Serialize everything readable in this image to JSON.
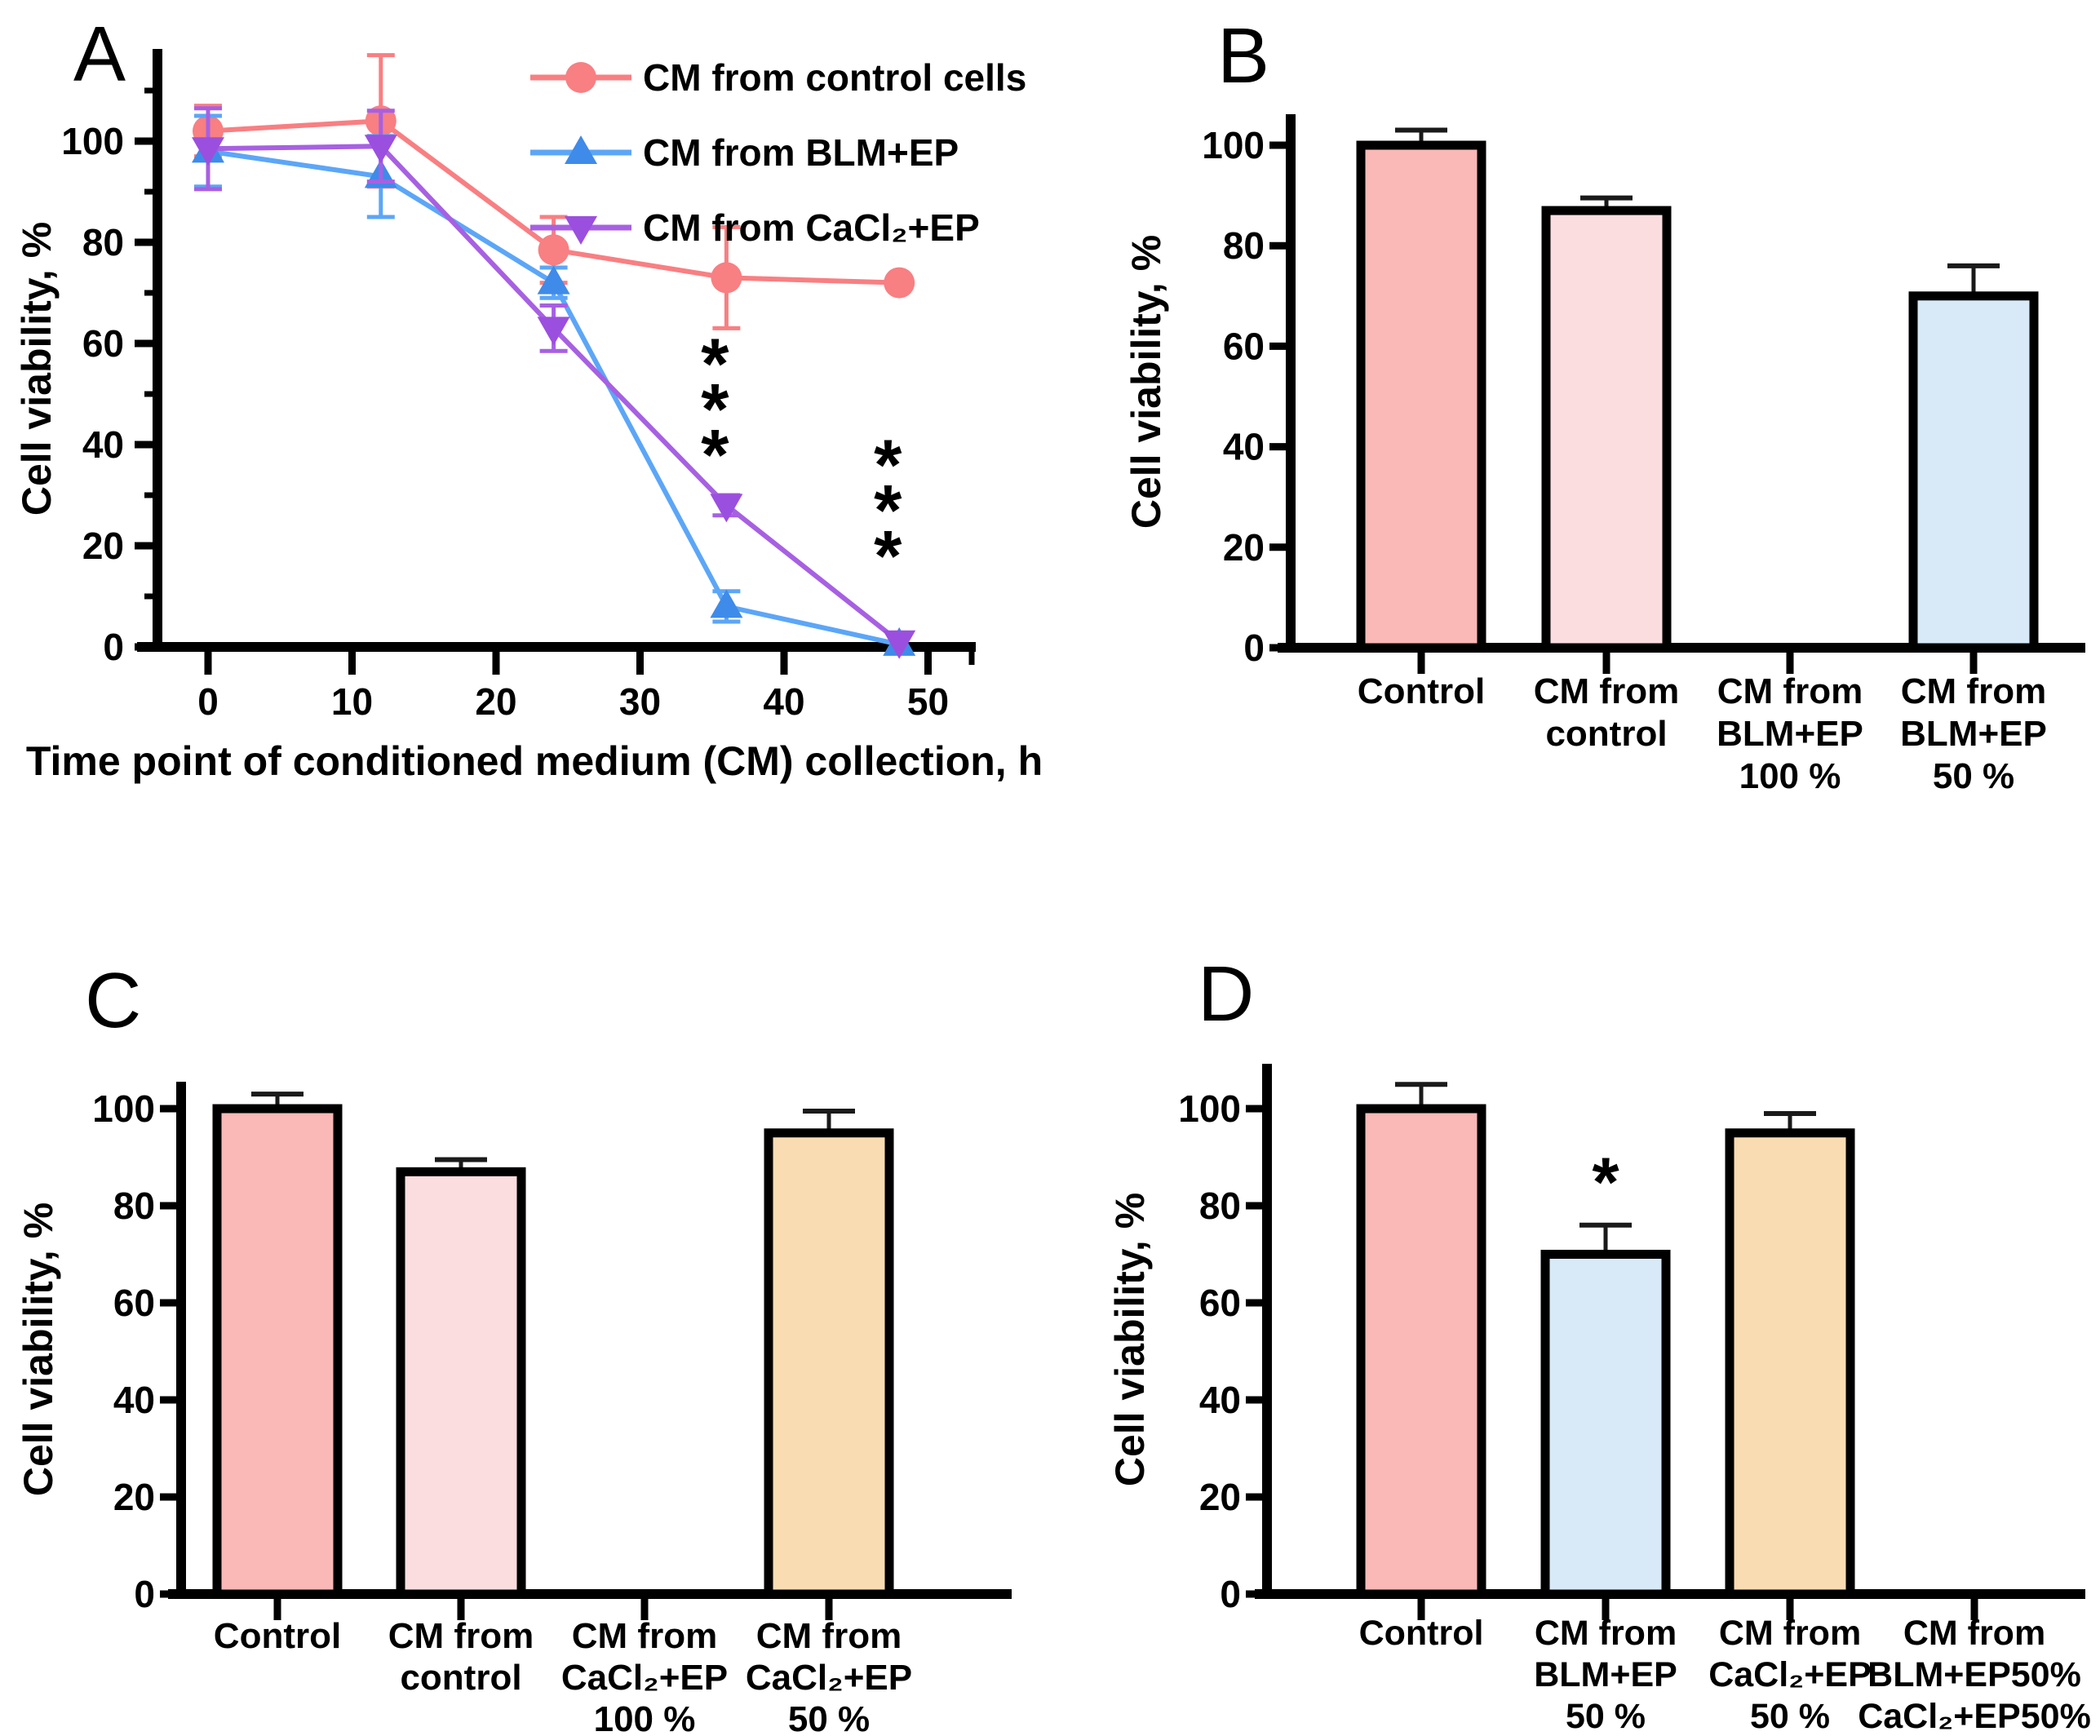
{
  "figure": {
    "background": "#ffffff",
    "panels": [
      {
        "letter": "A"
      },
      {
        "letter": "B"
      },
      {
        "letter": "C"
      },
      {
        "letter": "D"
      }
    ]
  },
  "chart_data": [
    {
      "panel": "A",
      "type": "line",
      "title": "",
      "xlabel": "Time point  of conditioned medium (CM) collection, h",
      "ylabel": "Cell viability, %",
      "x": [
        0,
        12,
        24,
        36,
        48
      ],
      "xticks": [
        0,
        10,
        20,
        30,
        40,
        50
      ],
      "yticks": [
        0,
        20,
        40,
        60,
        80,
        100
      ],
      "xlim": [
        -5,
        54
      ],
      "ylim": [
        0,
        118
      ],
      "grid": false,
      "legend_position": "top-right",
      "series": [
        {
          "name": "CM from control cells",
          "marker": "circle",
          "color": "#F87F82",
          "marker_color": "#F87F82",
          "values": [
            102,
            104,
            78.5,
            73,
            72
          ],
          "errors": [
            5,
            13,
            6.5,
            10,
            0
          ]
        },
        {
          "name": "CM from BLM+EP",
          "marker": "triangle-up",
          "color": "#5CA6F7",
          "marker_color": "#3E8BE9",
          "values": [
            98,
            93,
            72,
            8,
            0.5
          ],
          "errors": [
            7,
            8,
            3,
            3,
            0
          ]
        },
        {
          "name": "CM from CaCl₂+EP",
          "marker": "triangle-down",
          "color": "#A760E2",
          "marker_color": "#9B4FDE",
          "values": [
            98.5,
            99,
            63,
            28,
            1
          ],
          "errors": [
            8,
            7,
            4.5,
            2,
            0
          ]
        }
      ],
      "annotations": [
        {
          "text": "*",
          "x": 36,
          "y_values": [
            56,
            47,
            38
          ]
        },
        {
          "text": "*",
          "x": 48,
          "y_values": [
            36,
            27,
            18
          ]
        }
      ]
    },
    {
      "panel": "B",
      "type": "bar",
      "title": "",
      "xlabel": "",
      "ylabel": "Cell viability, %",
      "yticks": [
        0,
        20,
        40,
        60,
        80,
        100
      ],
      "ylim": [
        0,
        106
      ],
      "grid": false,
      "categories": [
        [
          "Control"
        ],
        [
          "CM from",
          "control"
        ],
        [
          "CM from",
          "BLM+EP",
          "100 %"
        ],
        [
          "CM from",
          "BLM+EP",
          "50 %"
        ]
      ],
      "values": [
        100,
        87,
        0,
        70
      ],
      "errors": [
        3,
        2.5,
        0,
        6
      ],
      "bar_colors": [
        "#FAB8B6",
        "#FBDDE0",
        "none",
        "#D8EAF8"
      ],
      "bar_outline": "#000000",
      "annotations": []
    },
    {
      "panel": "C",
      "type": "bar",
      "title": "",
      "xlabel": "",
      "ylabel": "Cell viability, %",
      "yticks": [
        0,
        20,
        40,
        60,
        80,
        100
      ],
      "ylim": [
        0,
        106
      ],
      "grid": false,
      "categories": [
        [
          "Control"
        ],
        [
          "CM from",
          "control"
        ],
        [
          "CM from",
          "CaCl₂+EP",
          "100 %"
        ],
        [
          "CM from",
          "CaCl₂+EP",
          "50 %"
        ]
      ],
      "values": [
        100,
        87,
        0,
        95
      ],
      "errors": [
        3,
        2.5,
        0,
        4.5
      ],
      "bar_colors": [
        "#FAB8B6",
        "#FBDDE0",
        "none",
        "#FADCB2"
      ],
      "bar_outline": "#000000",
      "annotations": []
    },
    {
      "panel": "D",
      "type": "bar",
      "title": "",
      "xlabel": "",
      "ylabel": "Cell viability, %",
      "yticks": [
        0,
        20,
        40,
        60,
        80,
        100
      ],
      "ylim": [
        0,
        109
      ],
      "grid": false,
      "categories": [
        [
          "Control"
        ],
        [
          "CM from",
          "BLM+EP",
          "50 %"
        ],
        [
          "CM from",
          "CaCl₂+EP",
          "50 %"
        ],
        [
          "CM from",
          "BLM+EP50%",
          "CaCl₂+EP50%"
        ]
      ],
      "values": [
        100,
        70,
        95,
        0
      ],
      "errors": [
        5,
        6,
        4,
        0
      ],
      "bar_colors": [
        "#FAB8B6",
        "#D8EAF8",
        "#FADCB2",
        "none"
      ],
      "bar_outline": "#000000",
      "annotations": [
        {
          "text": "*",
          "bar_index": 1,
          "y_value": 85
        }
      ]
    }
  ]
}
